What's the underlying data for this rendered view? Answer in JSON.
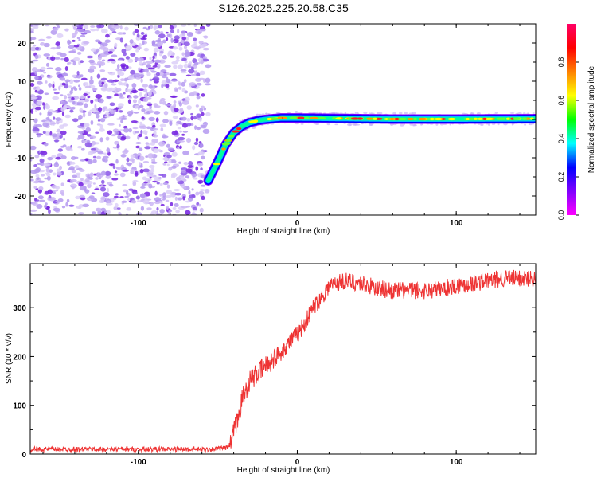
{
  "chart_data": [
    {
      "type": "heatmap",
      "title": "S126.2025.225.20.58.C35",
      "xlabel": "Height of straight line (km)",
      "ylabel": "Frequency (Hz)",
      "xlim": [
        -168,
        150
      ],
      "ylim": [
        -25,
        25
      ],
      "xticks": [
        -100,
        0,
        100
      ],
      "yticks": [
        -20,
        -10,
        0,
        10,
        20
      ],
      "grid": false,
      "colorbar": {
        "label": "Normalized spectral amplitude",
        "range": [
          0,
          1
        ],
        "ticks": [
          0.0,
          0.2,
          0.4,
          0.6,
          0.8
        ],
        "colormap": [
          "#ff00ff",
          "#8000ff",
          "#0000ff",
          "#00ffff",
          "#00ff00",
          "#ffff00",
          "#ff8000",
          "#ff0000",
          "#ff0066"
        ]
      },
      "noise_region_x": [
        -168,
        -56
      ],
      "ridge": {
        "x": [
          -56,
          -50,
          -45,
          -40,
          -35,
          -30,
          -25,
          -20,
          -15,
          -10,
          0,
          20,
          60,
          100,
          150
        ],
        "y": [
          -16,
          -11,
          -6.5,
          -3.5,
          -1.8,
          -0.8,
          -0.3,
          0,
          0.2,
          0.4,
          0.4,
          0.3,
          0.1,
          0.1,
          0.2
        ]
      }
    },
    {
      "type": "line",
      "xlabel": "Height of straight line (km)",
      "ylabel": "SNR (10 * v/v)",
      "xlim": [
        -168,
        150
      ],
      "ylim": [
        0,
        390
      ],
      "xticks": [
        -100,
        0,
        100
      ],
      "yticks": [
        0,
        100,
        200,
        300
      ],
      "grid": false,
      "line_color": "#ee3333",
      "series": [
        {
          "x": [
            -168,
            -150,
            -130,
            -110,
            -90,
            -70,
            -55,
            -45,
            -42,
            -40,
            -37,
            -35,
            -30,
            -25,
            -20,
            -15,
            -10,
            -5,
            0,
            5,
            10,
            15,
            20,
            25,
            30,
            40,
            50,
            60,
            70,
            80,
            90,
            100,
            110,
            120,
            130,
            140,
            150
          ],
          "values": [
            10,
            10,
            10,
            10,
            10,
            10,
            10,
            12,
            20,
            45,
            75,
            110,
            150,
            165,
            180,
            195,
            210,
            230,
            245,
            270,
            300,
            320,
            345,
            350,
            355,
            350,
            340,
            335,
            335,
            335,
            338,
            345,
            350,
            355,
            360,
            360,
            360
          ]
        }
      ]
    }
  ]
}
